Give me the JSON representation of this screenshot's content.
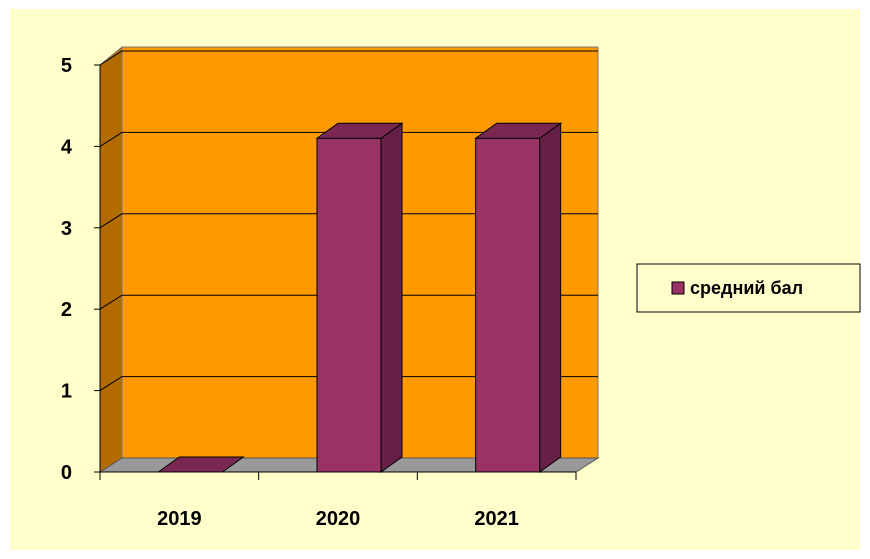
{
  "chart_data": {
    "type": "bar",
    "categories": [
      "2019",
      "2020",
      "2021"
    ],
    "series": [
      {
        "name": "средний бал",
        "values": [
          0,
          4.1,
          4.1
        ]
      }
    ],
    "ylim": [
      0,
      5
    ],
    "yticks": [
      "0",
      "1",
      "2",
      "3",
      "4",
      "5"
    ],
    "grid": true,
    "legend_position": "right",
    "colors": {
      "plot_background": "#ff9900",
      "side_wall": "#b36b00",
      "floor": "#999999",
      "bar_front": "#993366",
      "bar_side": "#661f45",
      "bar_top": "#7a2852",
      "chart_background": "#ffffcc"
    }
  }
}
